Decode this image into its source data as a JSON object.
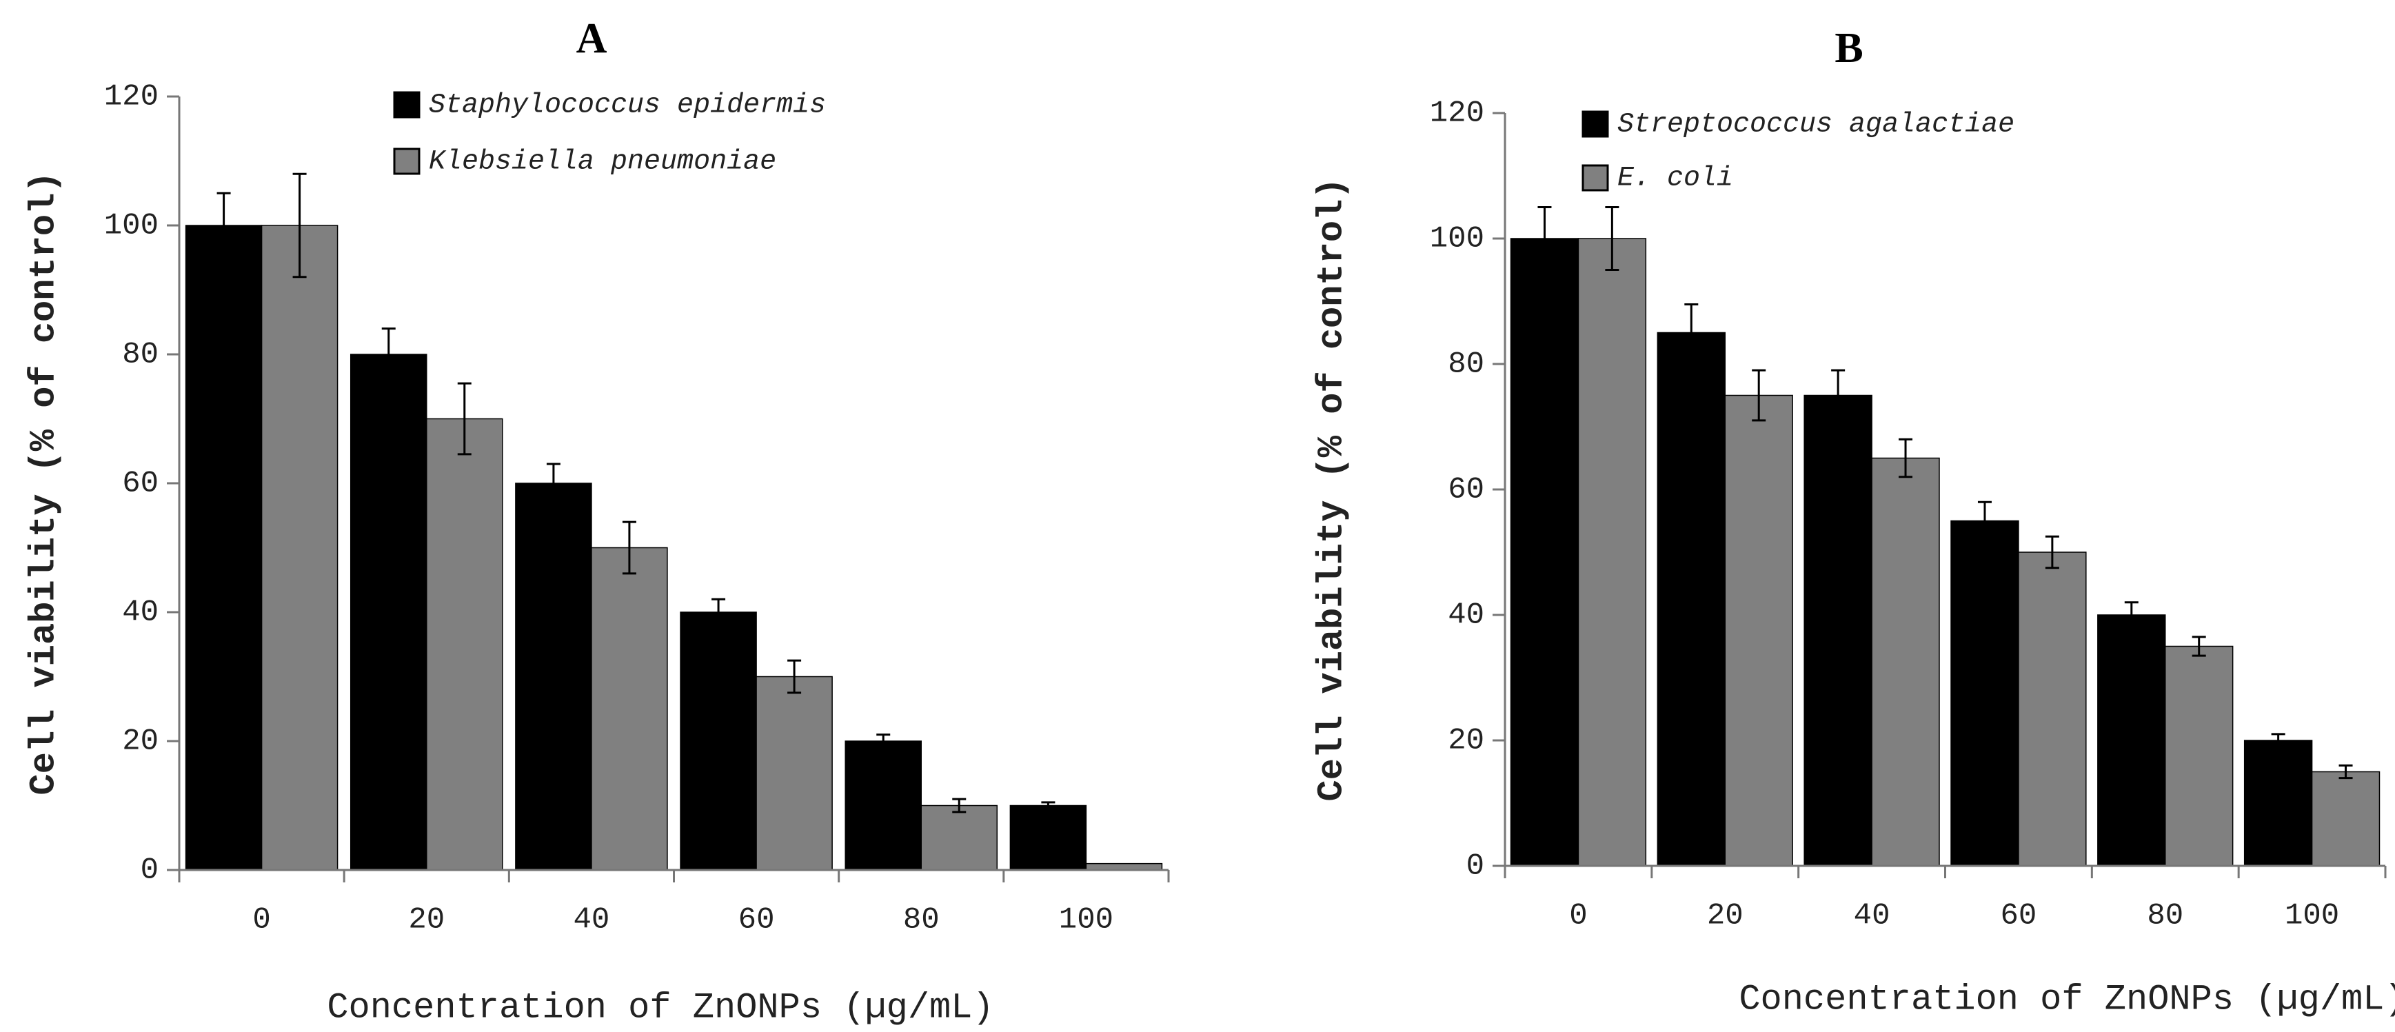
{
  "chart_data": [
    {
      "type": "bar",
      "panel": "A",
      "xlabel": "Concentration of ZnONPs (µg/mL)",
      "ylabel": "Cell viability (% of control)",
      "ylim": [
        0,
        120
      ],
      "yticks": [
        0,
        20,
        40,
        60,
        80,
        100,
        120
      ],
      "categories": [
        "0",
        "20",
        "40",
        "60",
        "80",
        "100"
      ],
      "series": [
        {
          "name": "Staphylococcus epidermis",
          "color": "#000000",
          "values": [
            100,
            80,
            60,
            40,
            20,
            10
          ],
          "errors": [
            5,
            4,
            3,
            2,
            1,
            0.5
          ]
        },
        {
          "name": "Klebsiella pneumoniae",
          "color": "#808080",
          "values": [
            100,
            70,
            50,
            30,
            10,
            1
          ],
          "errors": [
            8,
            5.5,
            4,
            2.5,
            1,
            0
          ]
        }
      ],
      "legend_position": "top"
    },
    {
      "type": "bar",
      "panel": "B",
      "xlabel": "Concentration of ZnONPs (µg/mL)",
      "ylabel": "Cell viability (% of control)",
      "ylim": [
        0,
        120
      ],
      "yticks": [
        0,
        20,
        40,
        60,
        80,
        100,
        120
      ],
      "categories": [
        "0",
        "20",
        "40",
        "60",
        "80",
        "100"
      ],
      "series": [
        {
          "name": "Streptococcus agalactiae",
          "color": "#000000",
          "values": [
            100,
            85,
            75,
            55,
            40,
            20
          ],
          "errors": [
            5,
            4.5,
            4,
            3,
            2,
            1
          ]
        },
        {
          "name": "E. coli",
          "color": "#808080",
          "values": [
            100,
            75,
            65,
            50,
            35,
            15
          ],
          "errors": [
            5,
            4,
            3,
            2.5,
            1.5,
            1
          ]
        }
      ],
      "legend_position": "top"
    }
  ]
}
